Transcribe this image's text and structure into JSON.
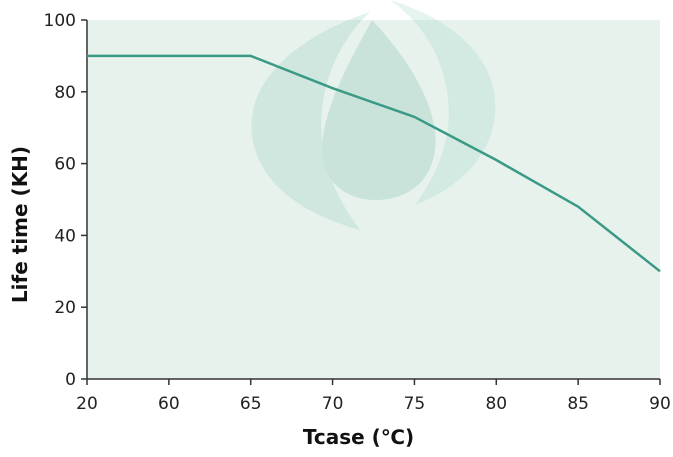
{
  "chart_data": {
    "type": "line",
    "xlabel": "Tcase  (℃)",
    "ylabel": "Life time  (KH)",
    "categories": [
      "20",
      "60",
      "65",
      "70",
      "75",
      "80",
      "85",
      "90"
    ],
    "ylim": [
      0,
      100
    ],
    "y_ticks": [
      "0",
      "20",
      "40",
      "60",
      "80",
      "100"
    ],
    "series": [
      {
        "values": [
          90,
          90,
          90,
          81,
          73,
          61,
          48,
          30
        ]
      }
    ],
    "grid": false,
    "colors": {
      "line": "#3a9a86",
      "plot_bg": "#e8f2ed",
      "axis": "#333333"
    },
    "background_logo": "leaf-drop-watermark"
  }
}
